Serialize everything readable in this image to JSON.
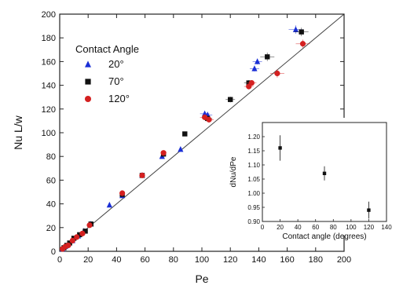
{
  "chart_data": [
    {
      "type": "scatter",
      "xlabel": "Pe",
      "ylabel": "Nu L/w",
      "xlim": [
        0,
        200
      ],
      "ylim": [
        0,
        200
      ],
      "x_ticks": [
        0,
        20,
        40,
        60,
        80,
        100,
        120,
        140,
        160,
        180,
        200
      ],
      "y_ticks": [
        0,
        20,
        40,
        60,
        80,
        100,
        120,
        140,
        160,
        180,
        200
      ],
      "legend_title": "Contact Angle",
      "legend_position": "top-left",
      "reference_line": {
        "x": [
          0,
          200
        ],
        "y": [
          0,
          200
        ]
      },
      "series": [
        {
          "name": "20°",
          "color": "#1a2fd6",
          "marker": "triangle",
          "points": [
            [
              2,
              2
            ],
            [
              4,
              4
            ],
            [
              6,
              6
            ],
            [
              9,
              9
            ],
            [
              13,
              13
            ],
            [
              17,
              17
            ],
            [
              22,
              23
            ],
            [
              35,
              39
            ],
            [
              44,
              47
            ],
            [
              58,
              64
            ],
            [
              72,
              80
            ],
            [
              85,
              86
            ],
            [
              102,
              116
            ],
            [
              104,
              115
            ],
            [
              137,
              154
            ],
            [
              139,
              160
            ],
            [
              166,
              187
            ]
          ]
        },
        {
          "name": "70°",
          "color": "#111111",
          "marker": "square",
          "points": [
            [
              3,
              3
            ],
            [
              5,
              5
            ],
            [
              7,
              7
            ],
            [
              10,
              11
            ],
            [
              14,
              14
            ],
            [
              18,
              17
            ],
            [
              22,
              23
            ],
            [
              44,
              48
            ],
            [
              58,
              64
            ],
            [
              73,
              82
            ],
            [
              88,
              99
            ],
            [
              104,
              112
            ],
            [
              120,
              128
            ],
            [
              133,
              142
            ],
            [
              146,
              164
            ],
            [
              170,
              185
            ]
          ]
        },
        {
          "name": "120°",
          "color": "#d42020",
          "marker": "circle",
          "points": [
            [
              2,
              2
            ],
            [
              4,
              4
            ],
            [
              6,
              5
            ],
            [
              9,
              9
            ],
            [
              12,
              12
            ],
            [
              16,
              15
            ],
            [
              21,
              22
            ],
            [
              44,
              49
            ],
            [
              58,
              64
            ],
            [
              73,
              83
            ],
            [
              102,
              113
            ],
            [
              105,
              111
            ],
            [
              133,
              139
            ],
            [
              135,
              142
            ],
            [
              153,
              150
            ],
            [
              171,
              175
            ]
          ]
        }
      ]
    },
    {
      "type": "scatter",
      "xlabel": "Contact angle (degrees)",
      "ylabel": "dNu/dPe",
      "xlim": [
        0,
        140
      ],
      "ylim": [
        0.9,
        1.25
      ],
      "x_ticks": [
        0,
        20,
        40,
        60,
        80,
        100,
        120,
        140
      ],
      "y_ticks": [
        "0.90",
        "0.95",
        "1.00",
        "1.05",
        "1.10",
        "1.15",
        "1.20"
      ],
      "series": [
        {
          "color": "#111111",
          "points": [
            {
              "x": 20,
              "y": 1.16,
              "err": 0.045
            },
            {
              "x": 70,
              "y": 1.07,
              "err": 0.025
            },
            {
              "x": 120,
              "y": 0.94,
              "err": 0.03
            }
          ]
        }
      ]
    }
  ]
}
